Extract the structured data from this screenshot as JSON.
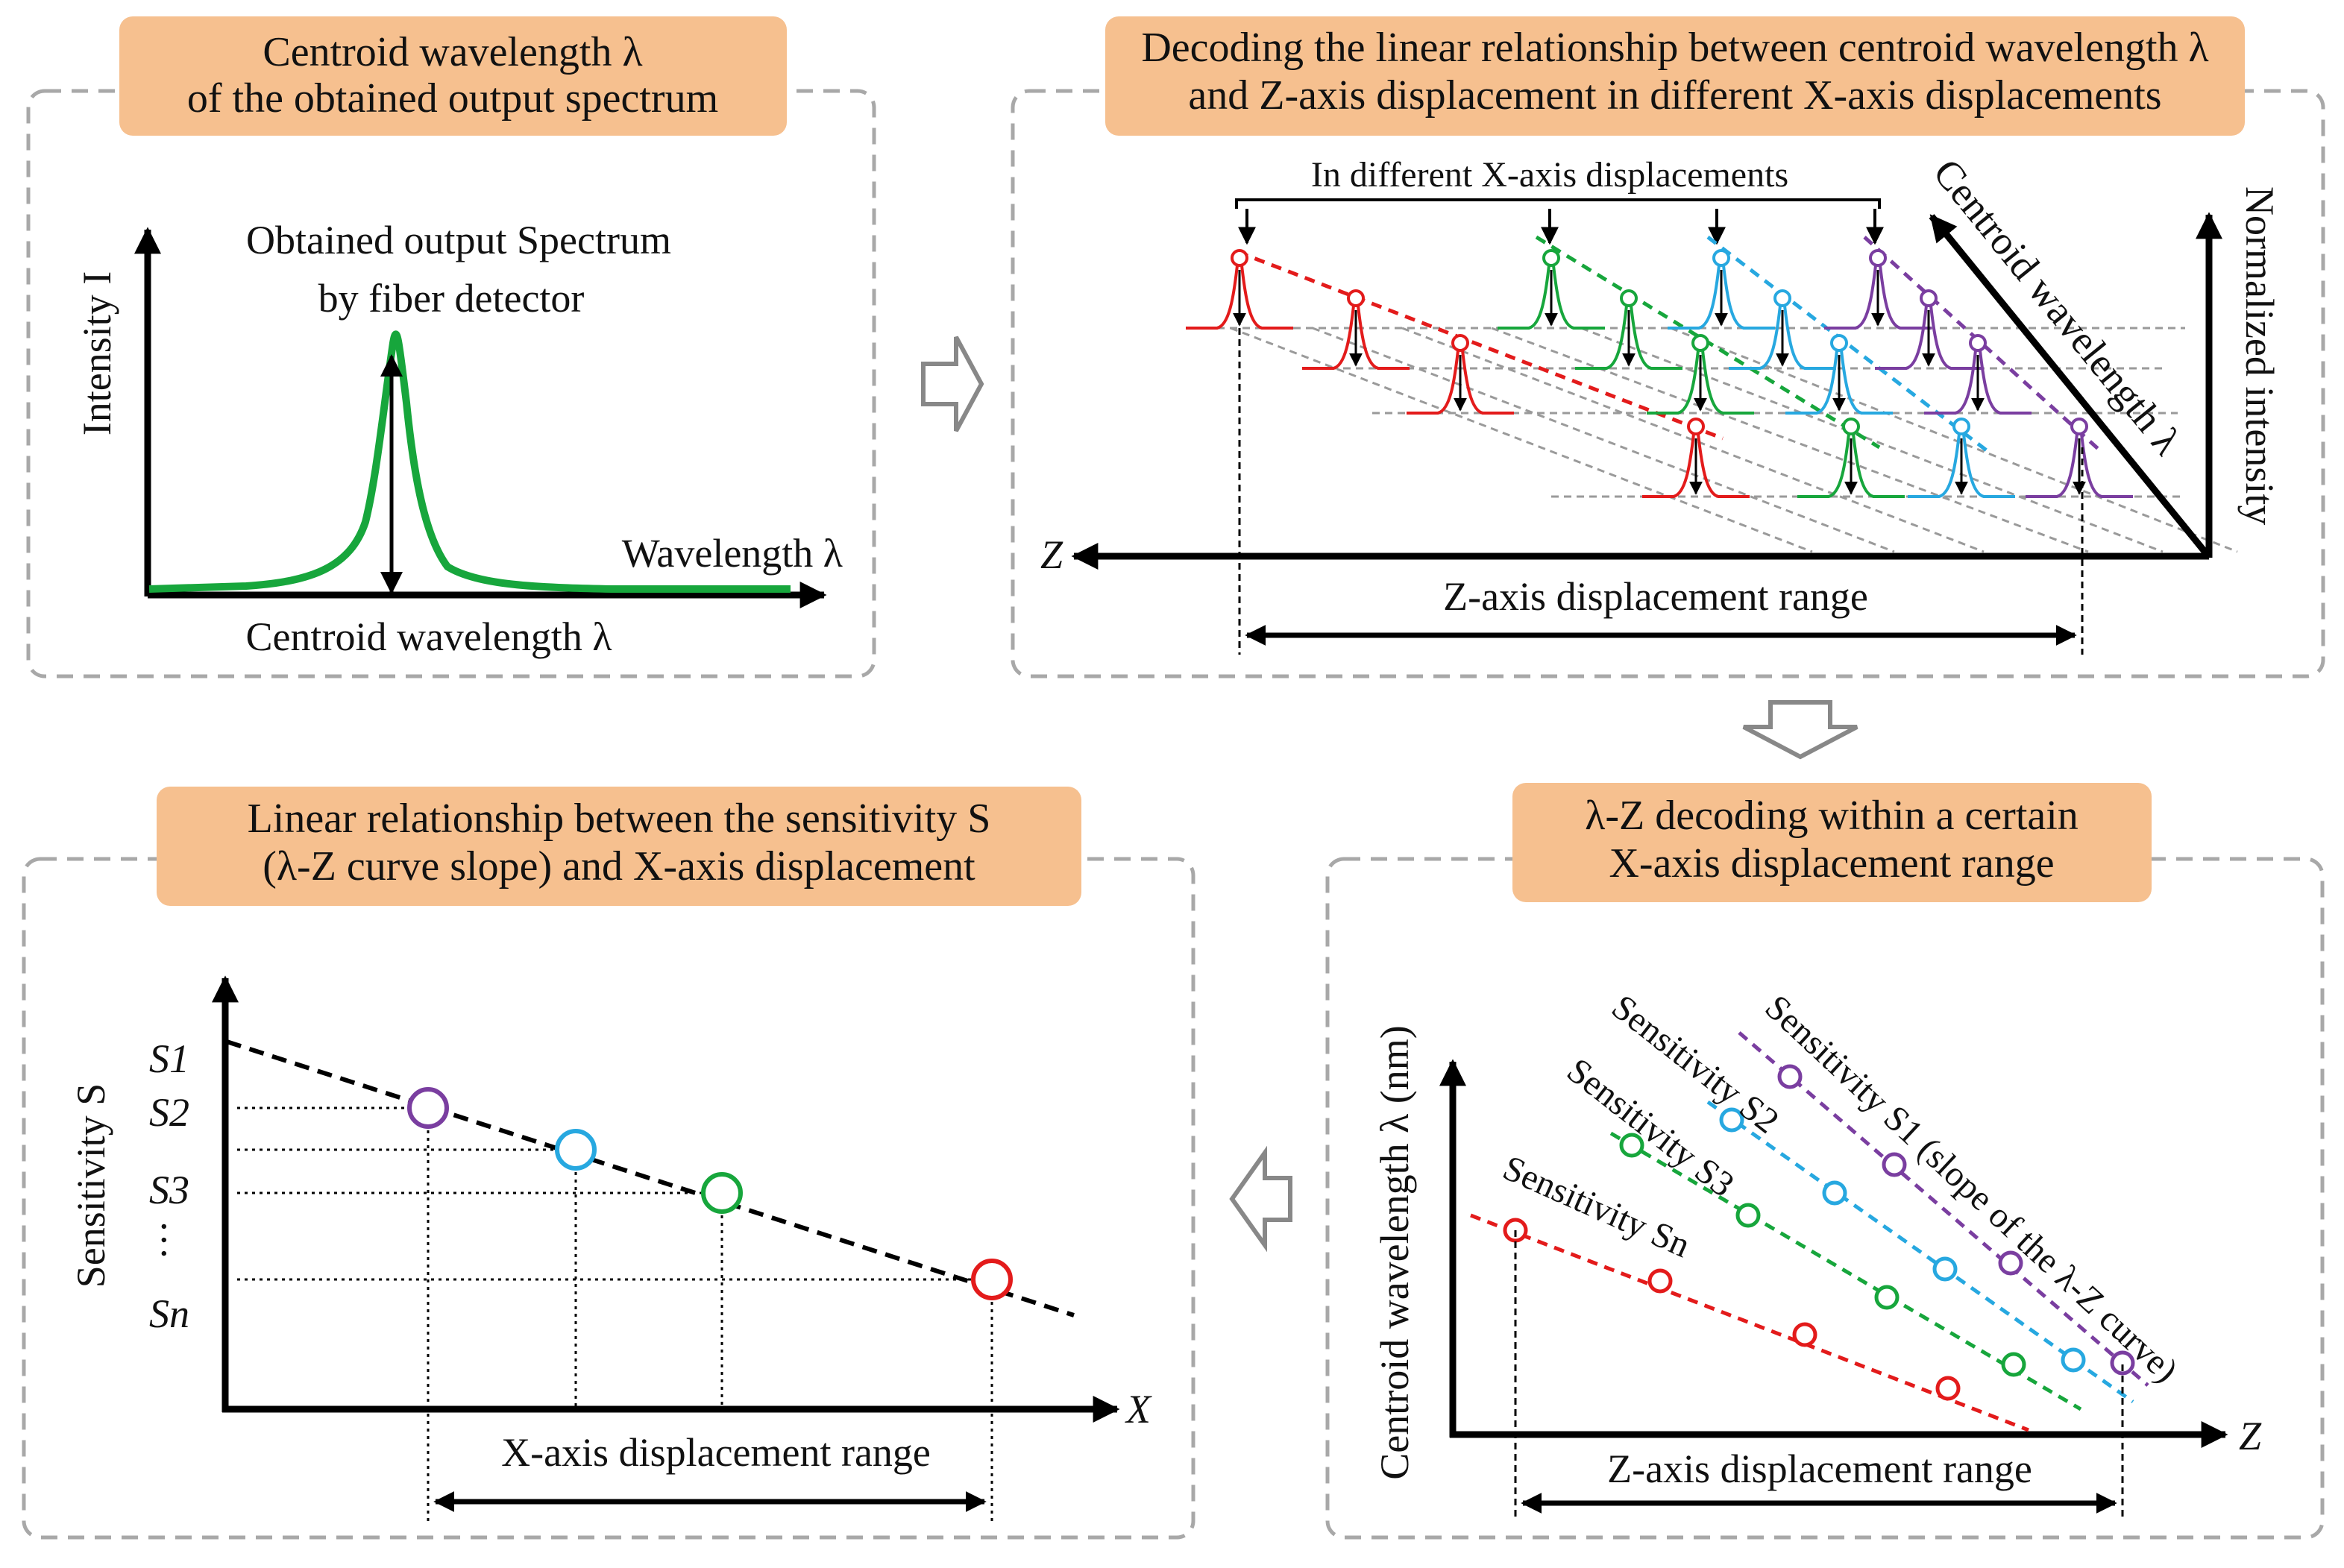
{
  "colors": {
    "title_bg": "#f6c08f",
    "panel_border": "#a8a8a8",
    "green": "#17a63c",
    "red": "#e31b1b",
    "cyan": "#27a8e0",
    "purple": "#7a3ea0",
    "black": "#000000",
    "grey_guide": "#9a9a9a",
    "arrow_outline": "#888888"
  },
  "panel1": {
    "title_line1": "Centroid wavelength λ",
    "title_line2": "of the obtained output spectrum",
    "spectrum_label_line1": "Obtained output Spectrum",
    "spectrum_label_line2": "by fiber detector",
    "y_axis_label": "Intensity I",
    "x_axis_label": "Wavelength λ",
    "peak_label": "Centroid wavelength λ"
  },
  "panel2": {
    "title_line1": "Decoding the linear relationship between centroid wavelength λ",
    "title_line2": "and Z-axis displacement in different X-axis displacements",
    "bracket_label": "In  different X-axis displacements",
    "z_axis_label": "Z",
    "diag_axis_label": "Centroid wavelength λ",
    "vert_axis_label": "Normalized intensity",
    "range_label": "Z-axis displacement range"
  },
  "panel3": {
    "title_line1": "λ-Z decoding within a certain",
    "title_line2": "X-axis displacement range",
    "y_axis_label": "Centroid wavelength λ (nm)",
    "x_axis_label": "Z",
    "range_label": "Z-axis displacement range",
    "sens_1": "Sensitivity S1 (slope of the λ-Z curve)",
    "sens_2": "Sensitivity S2",
    "sens_3": "Sensitivity S3",
    "sens_n": "Sensitivity Sn"
  },
  "panel4": {
    "title_line1": "Linear relationship between the sensitivity S",
    "title_line2": "(λ-Z curve slope) and X-axis displacement",
    "y_axis_label": "Sensitivity S",
    "x_axis_label": "X",
    "range_label": "X-axis displacement range",
    "ticks": [
      "S1",
      "S2",
      "S3",
      "…",
      "Sn"
    ]
  }
}
